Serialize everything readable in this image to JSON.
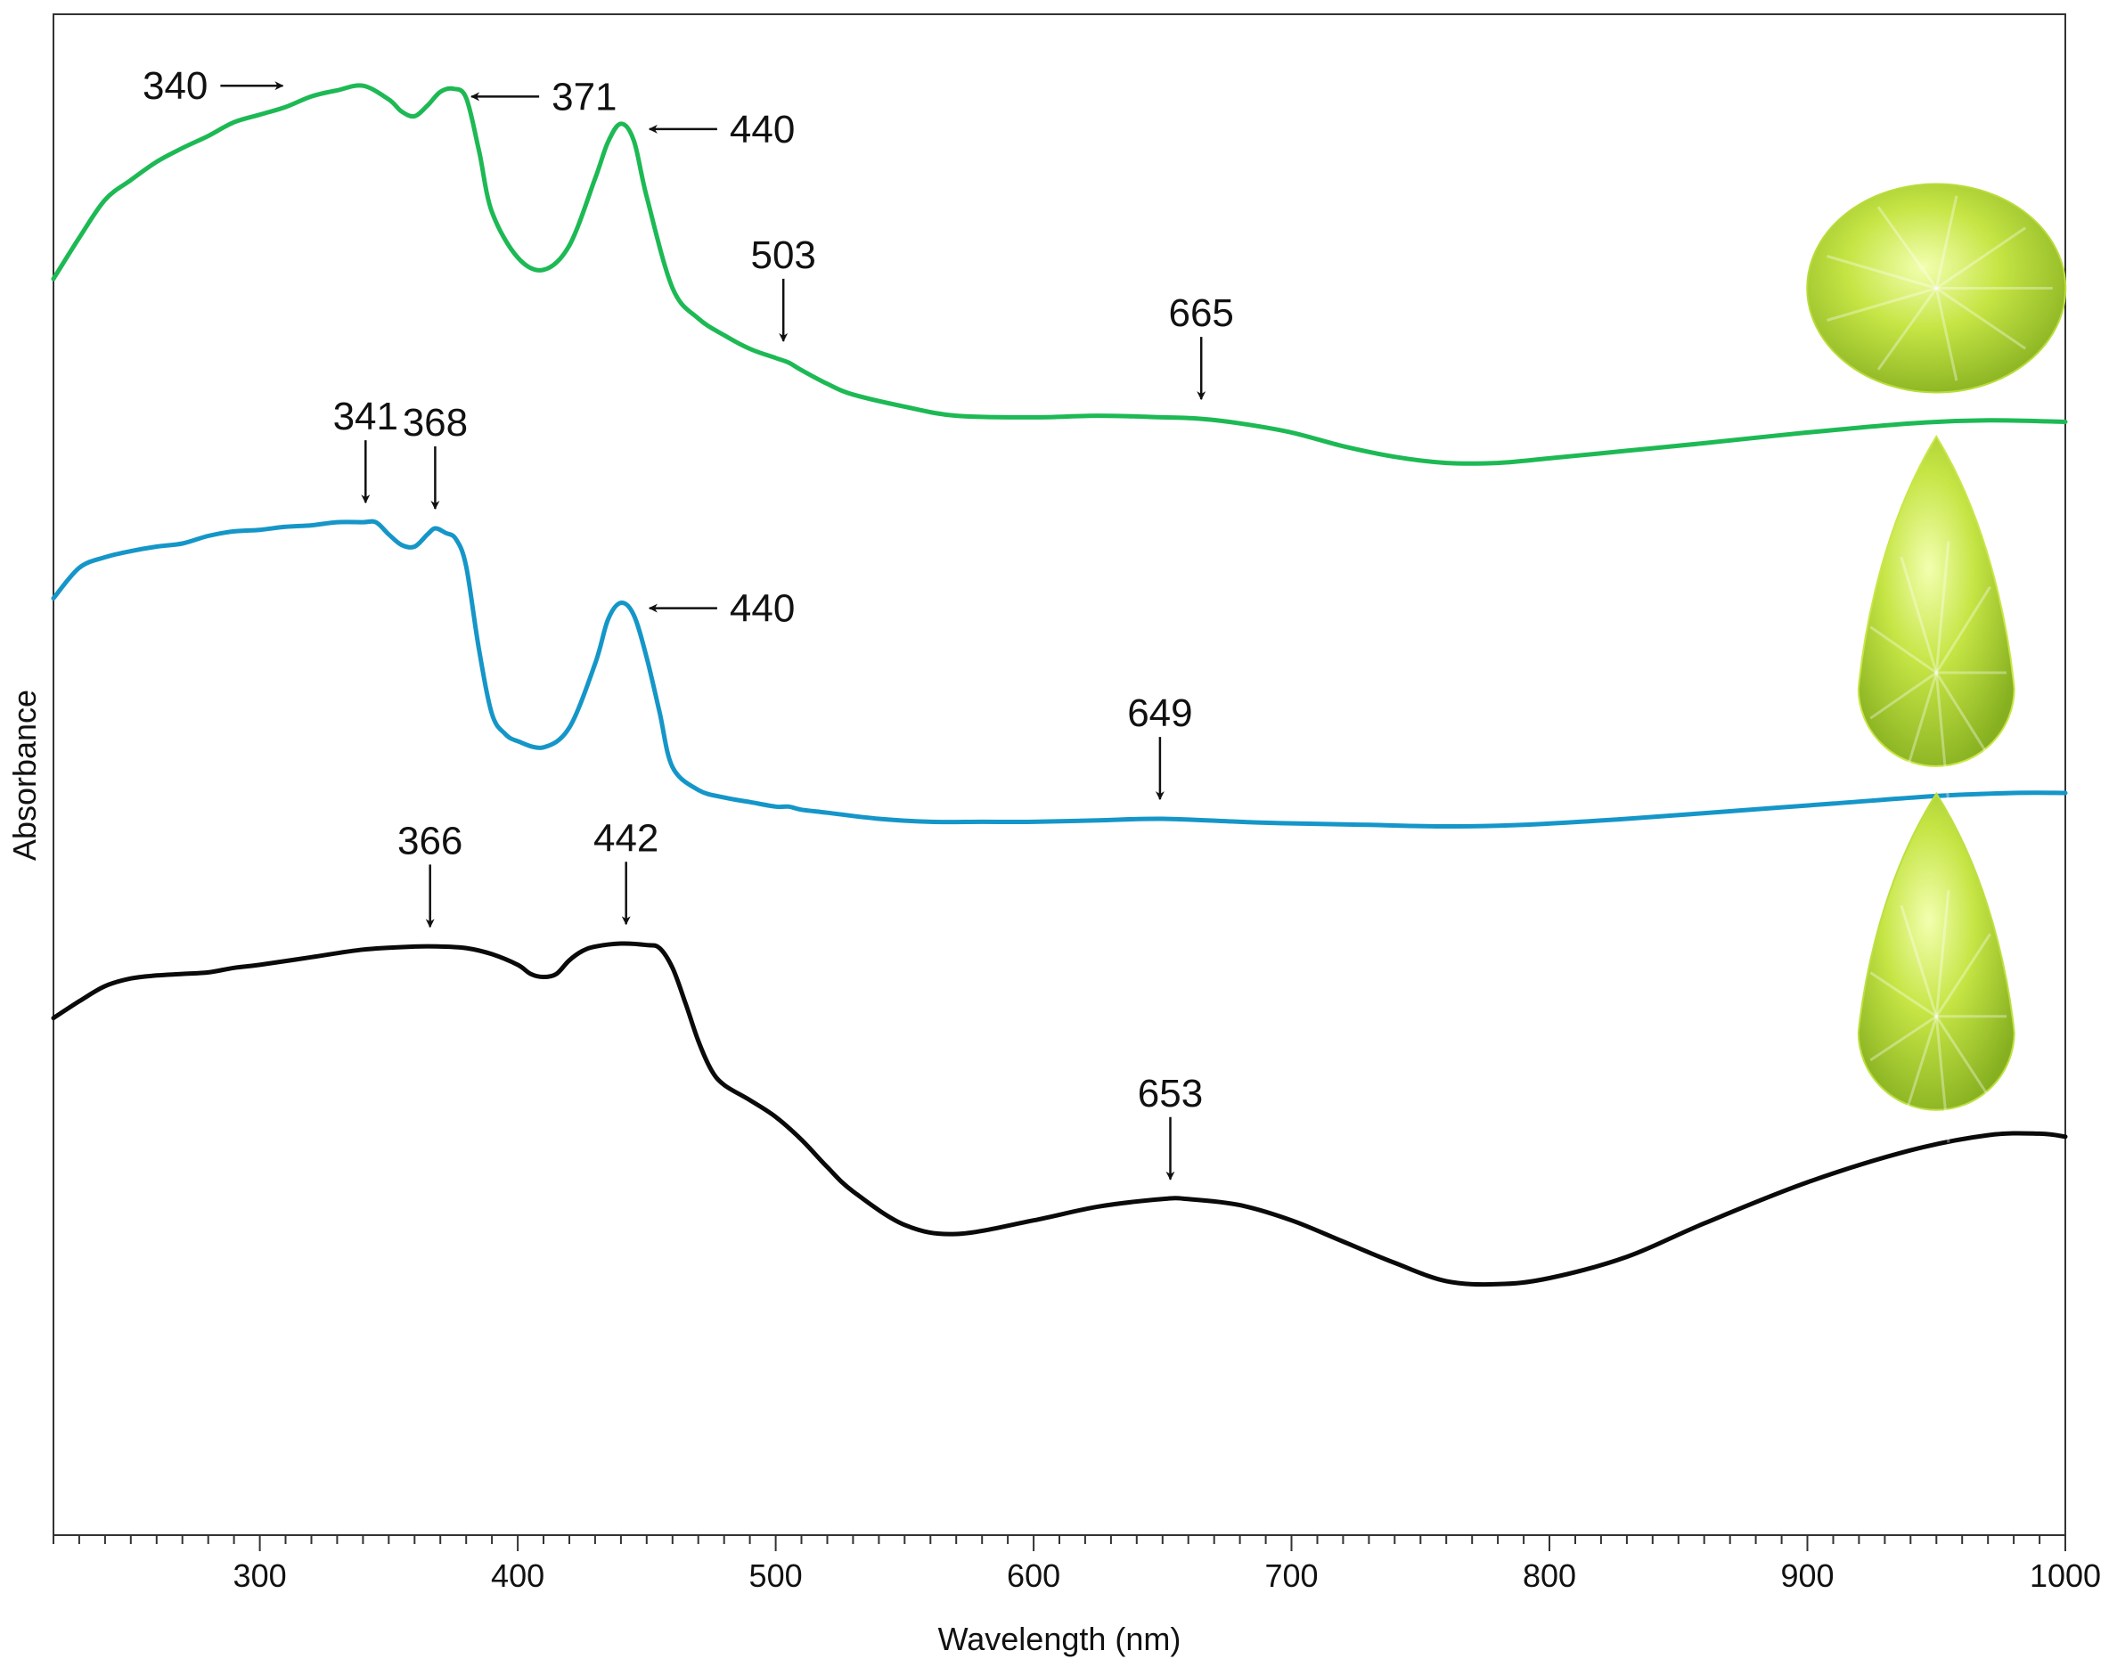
{
  "chart_data": {
    "type": "line",
    "title": "",
    "xlabel": "Wavelength (nm)",
    "ylabel": "Absorbance",
    "xlim": [
      220,
      1000
    ],
    "ylim": [
      0,
      1
    ],
    "xticks": [
      300,
      400,
      500,
      600,
      700,
      800,
      900,
      1000
    ],
    "tick_labels": [
      "300",
      "400",
      "500",
      "600",
      "700",
      "800",
      "900",
      "1000"
    ],
    "minor_tick_step": 10,
    "grid": false,
    "legend": "none",
    "y_units": "arbitrary (stacked spectra, relative offsets)",
    "series": [
      {
        "name": "green spectrum (oval gem)",
        "color": "#1db954",
        "x": [
          220,
          230,
          240,
          250,
          260,
          270,
          280,
          290,
          300,
          310,
          320,
          330,
          340,
          350,
          355,
          360,
          365,
          370,
          375,
          380,
          385,
          390,
          400,
          410,
          420,
          430,
          435,
          440,
          445,
          450,
          460,
          470,
          480,
          490,
          500,
          505,
          510,
          520,
          530,
          550,
          570,
          600,
          625,
          650,
          665,
          680,
          700,
          720,
          740,
          760,
          780,
          800,
          830,
          860,
          900,
          940,
          970,
          1000
        ],
        "y": [
          0.826,
          0.853,
          0.878,
          0.891,
          0.903,
          0.912,
          0.92,
          0.929,
          0.934,
          0.939,
          0.946,
          0.95,
          0.953,
          0.944,
          0.936,
          0.933,
          0.94,
          0.949,
          0.951,
          0.945,
          0.91,
          0.87,
          0.84,
          0.832,
          0.848,
          0.892,
          0.916,
          0.928,
          0.917,
          0.88,
          0.82,
          0.8,
          0.789,
          0.78,
          0.774,
          0.771,
          0.766,
          0.757,
          0.75,
          0.742,
          0.736,
          0.735,
          0.736,
          0.735,
          0.734,
          0.731,
          0.725,
          0.716,
          0.709,
          0.705,
          0.705,
          0.708,
          0.713,
          0.718,
          0.725,
          0.731,
          0.733,
          0.732
        ]
      },
      {
        "name": "blue spectrum (pear gem)",
        "color": "#1596c8",
        "x": [
          220,
          230,
          240,
          250,
          260,
          270,
          280,
          290,
          300,
          310,
          320,
          330,
          340,
          345,
          350,
          355,
          360,
          365,
          368,
          372,
          376,
          380,
          385,
          390,
          395,
          400,
          410,
          420,
          430,
          435,
          440,
          445,
          450,
          455,
          460,
          470,
          480,
          490,
          500,
          505,
          510,
          520,
          540,
          560,
          580,
          600,
          625,
          650,
          680,
          700,
          730,
          760,
          790,
          830,
          870,
          910,
          950,
          980,
          1000
        ],
        "y": [
          0.616,
          0.636,
          0.643,
          0.647,
          0.65,
          0.652,
          0.657,
          0.66,
          0.661,
          0.663,
          0.664,
          0.666,
          0.666,
          0.666,
          0.658,
          0.651,
          0.65,
          0.658,
          0.662,
          0.659,
          0.655,
          0.637,
          0.582,
          0.54,
          0.527,
          0.522,
          0.518,
          0.531,
          0.573,
          0.602,
          0.613,
          0.605,
          0.577,
          0.541,
          0.505,
          0.49,
          0.485,
          0.482,
          0.479,
          0.479,
          0.477,
          0.475,
          0.471,
          0.469,
          0.469,
          0.469,
          0.47,
          0.471,
          0.469,
          0.468,
          0.467,
          0.466,
          0.467,
          0.471,
          0.476,
          0.481,
          0.486,
          0.488,
          0.488
        ]
      },
      {
        "name": "black spectrum (pear gem)",
        "color": "#0a0a0a",
        "x": [
          220,
          230,
          240,
          250,
          260,
          270,
          280,
          290,
          300,
          320,
          340,
          360,
          370,
          380,
          390,
          400,
          405,
          410,
          415,
          420,
          425,
          430,
          440,
          450,
          455,
          460,
          465,
          470,
          475,
          480,
          490,
          500,
          510,
          520,
          530,
          550,
          570,
          600,
          625,
          650,
          660,
          680,
          700,
          720,
          740,
          760,
          780,
          800,
          830,
          860,
          900,
          940,
          970,
          990,
          1000
        ],
        "y": [
          0.34,
          0.351,
          0.361,
          0.366,
          0.368,
          0.369,
          0.37,
          0.373,
          0.375,
          0.38,
          0.385,
          0.387,
          0.387,
          0.386,
          0.382,
          0.375,
          0.369,
          0.367,
          0.369,
          0.378,
          0.384,
          0.387,
          0.389,
          0.388,
          0.386,
          0.373,
          0.35,
          0.325,
          0.306,
          0.296,
          0.286,
          0.275,
          0.26,
          0.242,
          0.226,
          0.204,
          0.198,
          0.207,
          0.216,
          0.221,
          0.221,
          0.217,
          0.207,
          0.193,
          0.179,
          0.167,
          0.165,
          0.169,
          0.183,
          0.205,
          0.232,
          0.253,
          0.263,
          0.264,
          0.262
        ]
      }
    ],
    "annotations": [
      {
        "series": 0,
        "label": "340",
        "x": 340,
        "arrow": "right"
      },
      {
        "series": 0,
        "label": "371",
        "x": 371,
        "arrow": "left"
      },
      {
        "series": 0,
        "label": "440",
        "x": 440,
        "arrow": "left"
      },
      {
        "series": 0,
        "label": "503",
        "x": 503,
        "arrow": "down"
      },
      {
        "series": 0,
        "label": "665",
        "x": 665,
        "arrow": "down"
      },
      {
        "series": 1,
        "label": "341",
        "x": 341,
        "arrow": "down"
      },
      {
        "series": 1,
        "label": "368",
        "x": 368,
        "arrow": "down"
      },
      {
        "series": 1,
        "label": "440",
        "x": 440,
        "arrow": "left"
      },
      {
        "series": 1,
        "label": "649",
        "x": 649,
        "arrow": "down"
      },
      {
        "series": 2,
        "label": "366",
        "x": 366,
        "arrow": "down"
      },
      {
        "series": 2,
        "label": "442",
        "x": 442,
        "arrow": "down"
      },
      {
        "series": 2,
        "label": "653",
        "x": 653,
        "arrow": "down"
      }
    ],
    "gem_images": [
      {
        "name": "oval-gem",
        "shape": "oval",
        "color": "#b8dc3a"
      },
      {
        "name": "pear-gem-blue",
        "shape": "pear",
        "color": "#c9e648"
      },
      {
        "name": "pear-gem-black",
        "shape": "pear",
        "color": "#bde040"
      }
    ]
  }
}
